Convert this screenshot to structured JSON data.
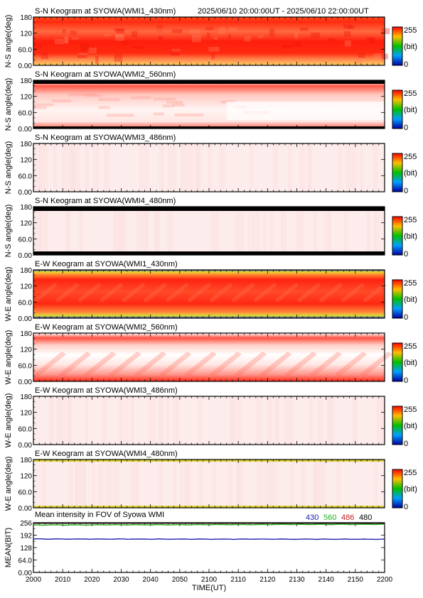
{
  "header": {
    "time_range": "2025/06/10 20:00:00UT - 2025/06/10 22:00:00UT"
  },
  "colorbar": {
    "max_label": "255",
    "min_label": "0",
    "unit_label": "(bit)"
  },
  "colors": {
    "c430": "#2020b0",
    "c560": "#20b020",
    "c486": "#c02020",
    "c480": "#000000"
  },
  "chart_data": [
    {
      "type": "heatmap",
      "title": "S-N Keogram at SYOWA(WMI1_430nm)",
      "ylabel": "N-S angle(deg)",
      "yticks": [
        "180",
        "120",
        "60.0",
        "0.00"
      ],
      "ylim": [
        0,
        180
      ],
      "profile": "red_band_sn"
    },
    {
      "type": "heatmap",
      "title": "S-N Keogram at SYOWA(WMI2_560nm)",
      "ylabel": "N-S angle(deg)",
      "yticks": [
        "180",
        "120",
        "60.0",
        "0.00"
      ],
      "ylim": [
        0,
        180
      ],
      "profile": "saturated_sn"
    },
    {
      "type": "heatmap",
      "title": "S-N Keogram at SYOWA(WMI3_486nm)",
      "ylabel": "N-S angle(deg)",
      "yticks": [
        "180",
        "120",
        "60.0",
        "0.00"
      ],
      "ylim": [
        0,
        180
      ],
      "profile": "pale"
    },
    {
      "type": "heatmap",
      "title": "S-N Keogram at SYOWA(WMI4_480nm)",
      "ylabel": "N-S angle(deg)",
      "yticks": [
        "180",
        "120",
        "60.0",
        "0.00"
      ],
      "ylim": [
        0,
        180
      ],
      "profile": "pale_black_edges"
    },
    {
      "type": "heatmap",
      "title": "E-W Keogram at SYOWA(WMI1_430nm)",
      "ylabel": "W-E angle(deg)",
      "yticks": [
        "180",
        "120",
        "60.0",
        "0.00"
      ],
      "ylim": [
        0,
        180
      ],
      "profile": "red_band_ew"
    },
    {
      "type": "heatmap",
      "title": "E-W Keogram at SYOWA(WMI2_560nm)",
      "ylabel": "W-E angle(deg)",
      "yticks": [
        "180",
        "120",
        "60.0",
        "0.00"
      ],
      "ylim": [
        0,
        180
      ],
      "profile": "saturated_ew"
    },
    {
      "type": "heatmap",
      "title": "E-W Keogram at SYOWA(WMI3_486nm)",
      "ylabel": "W-E angle(deg)",
      "yticks": [
        "180",
        "120",
        "60.0",
        "0.00"
      ],
      "ylim": [
        0,
        180
      ],
      "profile": "pale"
    },
    {
      "type": "heatmap",
      "title": "E-W Keogram at SYOWA(WMI4_480nm)",
      "ylabel": "W-E angle(deg)",
      "yticks": [
        "180",
        "120",
        "60.0",
        "0.00"
      ],
      "ylim": [
        0,
        180
      ],
      "profile": "pale_yellow_edges"
    },
    {
      "type": "line",
      "title": "Mean intensity in FOV of Syowa WMI",
      "ylabel": "MEAN(BIT)",
      "xlabel": "TIME(UT)",
      "yticks": [
        "256",
        "192",
        "128",
        "64.0",
        "0.00"
      ],
      "ylim": [
        0,
        256
      ],
      "xticks": [
        "2000",
        "2010",
        "2020",
        "2030",
        "2040",
        "2050",
        "2100",
        "2110",
        "2120",
        "2130",
        "2140",
        "2150",
        "2200"
      ],
      "xlim_minutes": [
        0,
        120
      ],
      "series": [
        {
          "name": "430",
          "color": "#2020b0",
          "start": 172,
          "end": 171
        },
        {
          "name": "560",
          "color": "#20b020",
          "start": 244,
          "end": 248
        },
        {
          "name": "486",
          "color": "#c02020",
          "start": 253,
          "end": 253
        },
        {
          "name": "480",
          "color": "#000000",
          "start": 254,
          "end": 254
        }
      ]
    }
  ]
}
